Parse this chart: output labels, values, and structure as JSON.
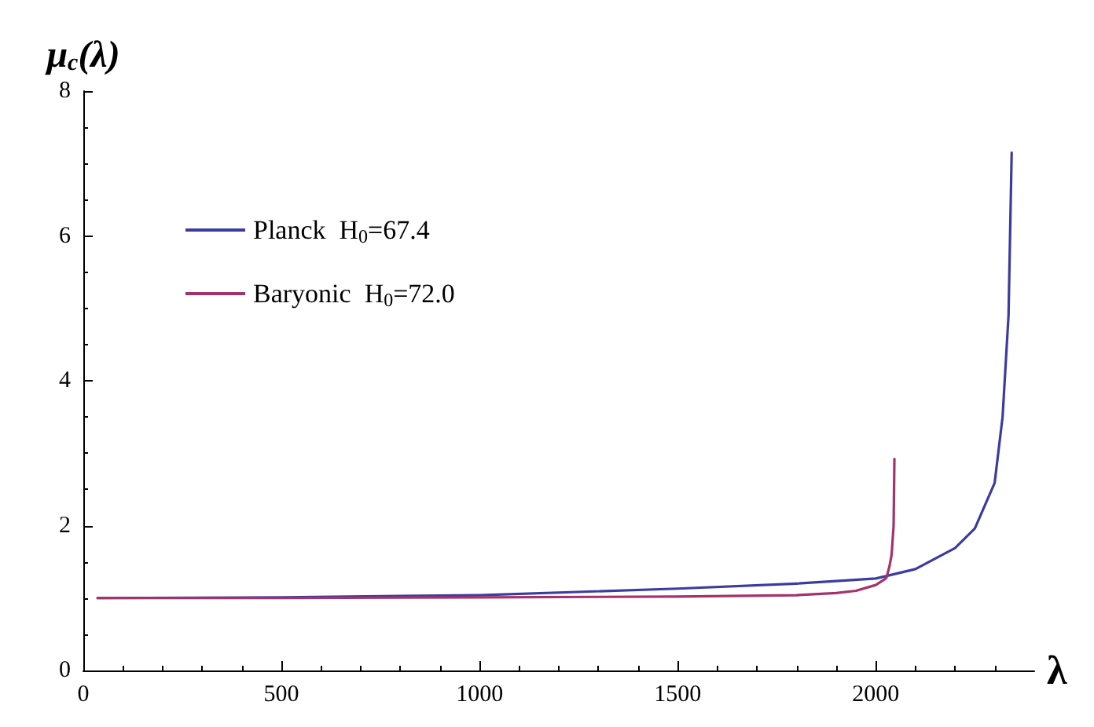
{
  "chart_data": {
    "type": "line",
    "xlabel": "λ",
    "ylabel": "μ$_{c}$(λ)",
    "xlim": [
      0,
      2400
    ],
    "xticks": [
      0,
      500,
      1000,
      1500,
      2000
    ],
    "ylim": [
      0,
      8
    ],
    "yticks": [
      0,
      2,
      4,
      6,
      8
    ],
    "grid": false,
    "legend": "top left",
    "marker": "none",
    "line_style": "solid",
    "series": [
      {
        "name": "Planck  H$_{0}$=67.4",
        "color": "#3c3ca0",
        "x": [
          36,
          500,
          1000,
          1500,
          1800,
          2000,
          2100,
          2200,
          2250,
          2300,
          2320,
          2335,
          2343
        ],
        "values": [
          1.0,
          1.01,
          1.04,
          1.13,
          1.2,
          1.27,
          1.4,
          1.69,
          1.96,
          2.59,
          3.5,
          4.9,
          7.15
        ]
      },
      {
        "name": "Baryonic  H$_{0}$=72.0",
        "color": "#a3336b",
        "x": [
          36,
          500,
          1000,
          1500,
          1800,
          1900,
          1950,
          2000,
          2020,
          2027,
          2035,
          2040,
          2045,
          2047
        ],
        "values": [
          1.0,
          1.0,
          1.01,
          1.02,
          1.04,
          1.07,
          1.1,
          1.18,
          1.25,
          1.28,
          1.45,
          1.6,
          2.0,
          2.92
        ]
      }
    ]
  }
}
